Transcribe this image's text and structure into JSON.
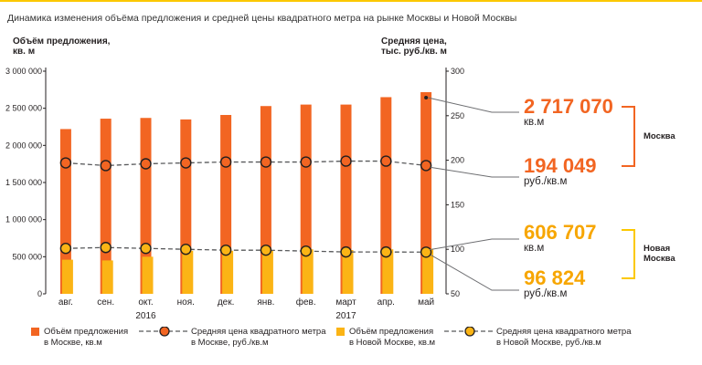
{
  "title": "Динамика изменения объёма предложения и средней цены квадратного метра на рынке Москвы и Новой Москвы",
  "colors": {
    "orange": "#f26522",
    "yellow": "#fbb415",
    "line": "#58595b",
    "accent": "#fcc800"
  },
  "chart_data": {
    "type": "bar",
    "categories": [
      "авг.",
      "сен.",
      "окт.",
      "ноя.",
      "дек.",
      "янв.",
      "фев.",
      "март",
      "апр.",
      "май"
    ],
    "year_labels": [
      "2016",
      "2017"
    ],
    "y_left": {
      "label": "Объём предложения,\nкв. м",
      "ylim": [
        0,
        3000000
      ],
      "ticks": [
        "0",
        "500 000",
        "1 000 000",
        "1 500 000",
        "2 000 000",
        "2 500 000",
        "3 000 000"
      ]
    },
    "y_right": {
      "label": "Средняя цена,\nтыс. руб./кв. м",
      "ylim": [
        50,
        300
      ],
      "ticks": [
        "50",
        "100",
        "150",
        "200",
        "250",
        "300"
      ]
    },
    "series": [
      {
        "name": "Объём предложения\nв Москве, кв.м",
        "kind": "bar",
        "axis": "left",
        "values": [
          2220000,
          2360000,
          2370000,
          2350000,
          2410000,
          2530000,
          2550000,
          2550000,
          2650000,
          2717070
        ]
      },
      {
        "name": "Объём предложения\nв Новой Москве, кв.м",
        "kind": "bar",
        "axis": "left",
        "values": [
          460000,
          450000,
          500000,
          580000,
          580000,
          590000,
          600000,
          590000,
          600000,
          606707
        ]
      },
      {
        "name": "Средняя цена квадратного метра\nв Москве, руб./кв.м",
        "kind": "line",
        "axis": "right",
        "values": [
          197,
          194,
          196,
          197,
          198,
          198,
          198,
          199,
          199,
          194.049
        ]
      },
      {
        "name": "Средняя цена квадратного метра\nв Новой Москве, руб./кв.м",
        "kind": "line",
        "axis": "right",
        "values": [
          101,
          102,
          101,
          100,
          99,
          99,
          98,
          97,
          97,
          96.824
        ]
      }
    ]
  },
  "callouts": {
    "moscow_volume": {
      "value": "2 717 070",
      "unit": "кв.м"
    },
    "moscow_price": {
      "value": "194 049",
      "unit": "руб./кв.м"
    },
    "new_volume": {
      "value": "606 707",
      "unit": "кв.м"
    },
    "new_price": {
      "value": "96 824",
      "unit": "руб./кв.м"
    },
    "moscow_label": "Москва",
    "new_label": "Новая\nМосква"
  }
}
